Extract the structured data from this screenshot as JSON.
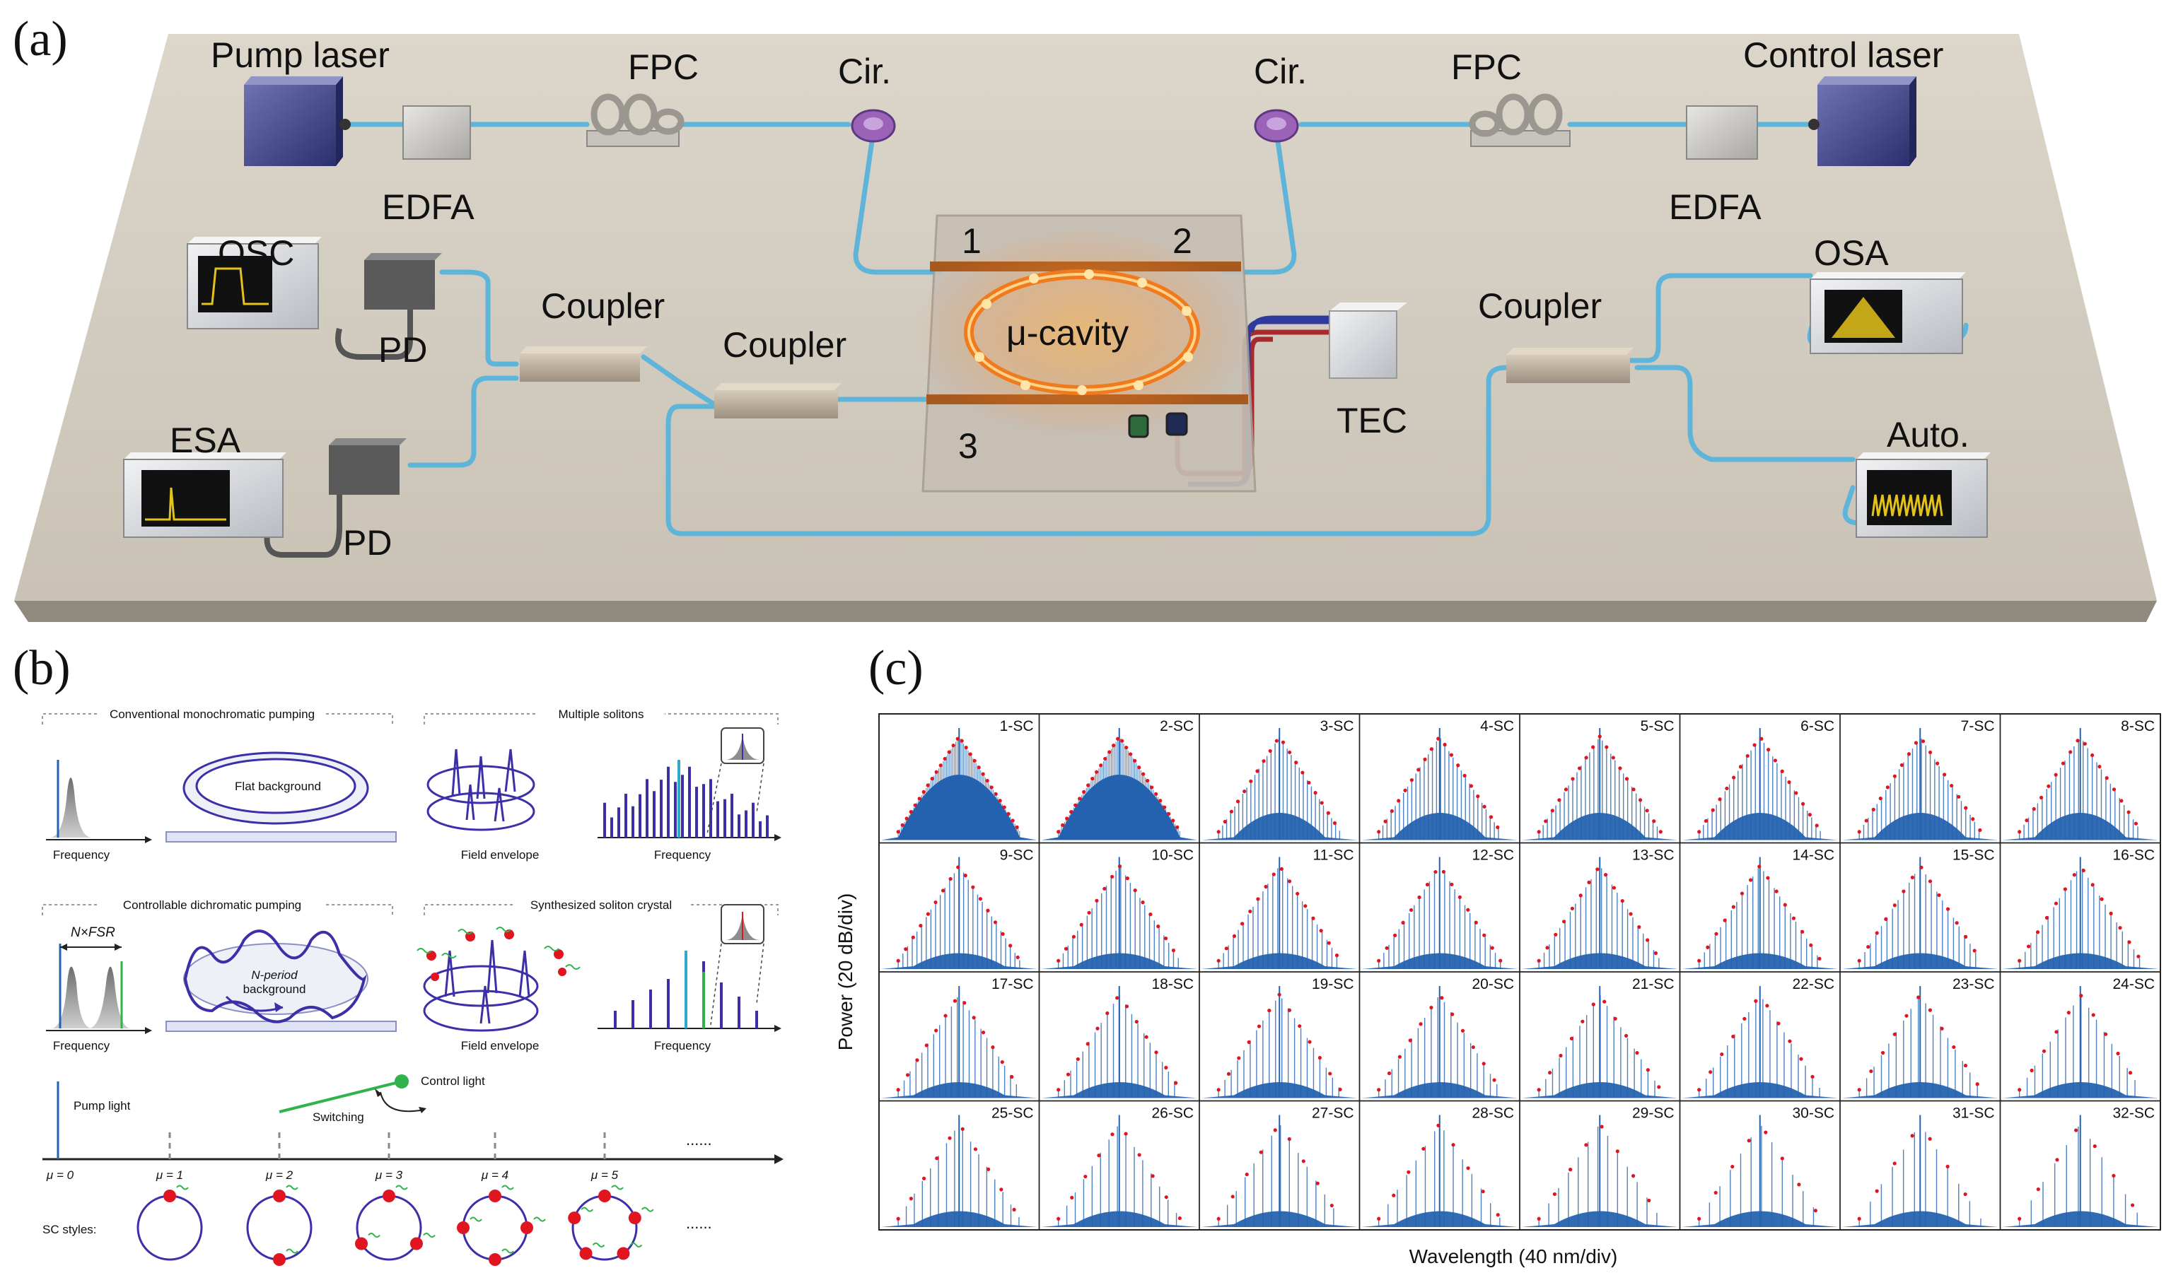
{
  "panel_a": {
    "label": "(a)",
    "pump_laser": "Pump laser",
    "control_laser": "Control laser",
    "fpc_left": "FPC",
    "fpc_right": "FPC",
    "cir_left": "Cir.",
    "cir_right": "Cir.",
    "edfa_left": "EDFA",
    "edfa_right": "EDFA",
    "osc": "OSC",
    "esa": "ESA",
    "osa": "OSA",
    "auto": "Auto.",
    "pd_top": "PD",
    "pd_bottom": "PD",
    "coupler_1": "Coupler",
    "coupler_2": "Coupler",
    "coupler_3": "Coupler",
    "tec": "TEC",
    "cavity": "μ-cavity",
    "port_1": "1",
    "port_2": "2",
    "port_3": "3"
  },
  "panel_b": {
    "label": "(b)",
    "conv_title": "Conventional monochromatic pumping",
    "multi_title": "Multiple solitons",
    "flat_bg": "Flat background",
    "freq_1": "Frequency",
    "field_1": "Field envelope",
    "freq_2": "Frequency",
    "ctrl_title": "Controllable dichromatic pumping",
    "synth_title": "Synthesized soliton crystal",
    "nfsr": "N×FSR",
    "nperiod_1": "N-period",
    "nperiod_2": "background",
    "freq_3": "Frequency",
    "field_2": "Field envelope",
    "freq_4": "Frequency",
    "pump_light": "Pump light",
    "control_light": "Control light",
    "switching": "Switching",
    "mu_labels": [
      "μ = 0",
      "μ = 1",
      "μ = 2",
      "μ = 3",
      "μ = 4",
      "μ = 5"
    ],
    "dots": "......",
    "sc_styles": "SC styles:",
    "dots2": "......"
  },
  "panel_c": {
    "label": "(c)",
    "ylabel": "Power (20 dB/div)",
    "xlabel": "Wavelength (40 nm/div)",
    "cells": [
      "1-SC",
      "2-SC",
      "3-SC",
      "4-SC",
      "5-SC",
      "6-SC",
      "7-SC",
      "8-SC",
      "9-SC",
      "10-SC",
      "11-SC",
      "12-SC",
      "13-SC",
      "14-SC",
      "15-SC",
      "16-SC",
      "17-SC",
      "18-SC",
      "19-SC",
      "20-SC",
      "21-SC",
      "22-SC",
      "23-SC",
      "24-SC",
      "25-SC",
      "26-SC",
      "27-SC",
      "28-SC",
      "29-SC",
      "30-SC",
      "31-SC",
      "32-SC"
    ]
  },
  "colors": {
    "fiber": "#5fb4d9",
    "spectrum": "#2563b0",
    "envelope": "#e0151f",
    "cavity_glow": "#f07a1e",
    "field": "#3c2fa8",
    "control_green": "#2fb34a"
  }
}
